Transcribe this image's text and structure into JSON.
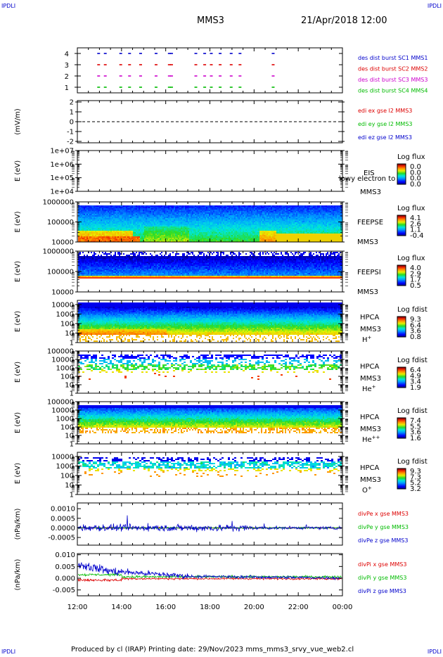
{
  "page": {
    "corner_label": "IPDLI",
    "title": "MMS3",
    "date": "21/Apr/2018 12:00",
    "footer": "Produced by cl (IRAP)    Printing date: 29/Nov/2023    mms_mms3_srvy_vue_web2.cl",
    "time_ticks": [
      "12:00",
      "14:00",
      "16:00",
      "18:00",
      "20:00",
      "22:00",
      "00:00"
    ]
  },
  "colors": {
    "red": "#dd0000",
    "magenta": "#cc00cc",
    "blue": "#0000cc",
    "green": "#00bb00"
  },
  "chart_data": [
    {
      "type": "scatter",
      "panel": "burst",
      "yticks": [
        "1",
        "2",
        "3",
        "4"
      ],
      "ylim": [
        0.5,
        4.5
      ],
      "series": [
        {
          "name": "des dist burst SC1 MMS1",
          "color": "#0000cc",
          "y": 4,
          "x": [
            12.9,
            13.2,
            13.9,
            14.3,
            14.8,
            15.5,
            16.1,
            16.2,
            17.3,
            17.7,
            18.0,
            18.4,
            18.9,
            19.3,
            20.8
          ]
        },
        {
          "name": "des dist burst SC2 MMS2",
          "color": "#dd0000",
          "y": 3,
          "x": [
            12.9,
            13.2,
            13.9,
            14.3,
            14.8,
            15.5,
            16.1,
            16.2,
            17.3,
            17.7,
            18.0,
            18.4,
            18.9,
            19.3,
            20.8
          ]
        },
        {
          "name": "des dist burst SC3 MMS3",
          "color": "#cc00cc",
          "y": 2,
          "x": [
            12.9,
            13.2,
            13.9,
            14.3,
            14.8,
            15.5,
            16.1,
            16.2,
            17.3,
            17.7,
            18.0,
            18.4,
            18.9,
            19.3,
            20.8
          ]
        },
        {
          "name": "des dist burst SC4 MMS4",
          "color": "#00bb00",
          "y": 1,
          "x": [
            12.9,
            13.2,
            13.9,
            14.3,
            14.8,
            15.5,
            16.1,
            16.2,
            17.3,
            17.7,
            18.0,
            18.4,
            18.9,
            19.3,
            20.8
          ]
        }
      ]
    },
    {
      "type": "line",
      "panel": "edi",
      "ylabel": "(mV/m)",
      "yticks": [
        "-2",
        "-1",
        "0",
        "1",
        "2"
      ],
      "ylim": [
        -2,
        2
      ],
      "series": [
        {
          "name": "edi ex gse l2 MMS3",
          "color": "#dd0000"
        },
        {
          "name": "edi ey gse l2 MMS3",
          "color": "#00bb00"
        },
        {
          "name": "edi ez gse l2 MMS3",
          "color": "#0000cc"
        }
      ],
      "reference_line": 0
    },
    {
      "type": "heatmap",
      "panel": "eis",
      "ylabel": "E (eV)",
      "yticks": [
        "1e+04",
        "1e+05",
        "1e+06",
        "1e+07"
      ],
      "instrument": [
        "EIS",
        "MMS3"
      ],
      "overlap_label": "lowy electron to",
      "colorbar": {
        "label": "Log flux",
        "ticks": [
          "0.0",
          "0.0",
          "0.0",
          "0.0"
        ]
      },
      "empty": true
    },
    {
      "type": "heatmap",
      "panel": "feepse",
      "ylabel": "E (eV)",
      "yticks": [
        "10000",
        "100000",
        "1000000"
      ],
      "instrument": [
        "FEEPSE",
        "MMS3"
      ],
      "colorbar": {
        "label": "Log flux",
        "ticks": [
          "4.1",
          "2.6",
          "1.1",
          "-0.4"
        ]
      }
    },
    {
      "type": "heatmap",
      "panel": "feepsi",
      "ylabel": "E (eV)",
      "yticks": [
        "10000",
        "100000",
        "1000000"
      ],
      "instrument": [
        "FEEPSI",
        "MMS3"
      ],
      "colorbar": {
        "label": "Log flux",
        "ticks": [
          "4.0",
          "2.9",
          "1.7",
          "0.5"
        ]
      }
    },
    {
      "type": "heatmap",
      "panel": "hpca_h",
      "ylabel": "E (eV)",
      "yticks": [
        "1",
        "10",
        "100",
        "1000",
        "10000"
      ],
      "instrument": [
        "HPCA",
        "MMS3"
      ],
      "species": {
        "base": "H",
        "charge": "+"
      },
      "colorbar": {
        "label": "Log fdist",
        "ticks": [
          "9.3",
          "6.4",
          "3.6",
          "0.8"
        ]
      }
    },
    {
      "type": "heatmap",
      "panel": "hpca_he1",
      "ylabel": "E (eV)",
      "yticks": [
        "1",
        "10",
        "100",
        "1000",
        "10000",
        "100000"
      ],
      "instrument": [
        "HPCA",
        "MMS3"
      ],
      "species": {
        "base": "He",
        "charge": "+"
      },
      "colorbar": {
        "label": "Log fdist",
        "ticks": [
          "6.4",
          "4.9",
          "3.4",
          "1.9"
        ]
      }
    },
    {
      "type": "heatmap",
      "panel": "hpca_he2",
      "ylabel": "E (eV)",
      "yticks": [
        "1",
        "10",
        "100",
        "1000",
        "10000",
        "100000"
      ],
      "instrument": [
        "HPCA",
        "MMS3"
      ],
      "species": {
        "base": "He",
        "charge": "++"
      },
      "colorbar": {
        "label": "Log fdist",
        "ticks": [
          "7.4",
          "5.5",
          "3.6",
          "1.6"
        ]
      }
    },
    {
      "type": "heatmap",
      "panel": "hpca_o",
      "ylabel": "E (eV)",
      "yticks": [
        "1",
        "10",
        "100",
        "1000",
        "10000"
      ],
      "instrument": [
        "HPCA",
        "MMS3"
      ],
      "species": {
        "base": "O",
        "charge": "+"
      },
      "colorbar": {
        "label": "Log fdist",
        "ticks": [
          "9.3",
          "7.3",
          "5.2",
          "3.2"
        ]
      }
    },
    {
      "type": "line",
      "panel": "divpe",
      "ylabel": "(nPa/km)",
      "yticks": [
        "-0.0005",
        "0.0000",
        "0.0005",
        "0.0010"
      ],
      "ylim": [
        -0.0009,
        0.0013
      ],
      "series": [
        {
          "name": "divPe x gse MMS3",
          "color": "#dd0000"
        },
        {
          "name": "divPe y gse MMS3",
          "color": "#00bb00"
        },
        {
          "name": "divPe z gse MMS3",
          "color": "#0000cc"
        }
      ]
    },
    {
      "type": "line",
      "panel": "divpi",
      "ylabel": "(nPa/km)",
      "yticks": [
        "-0.005",
        "0.000",
        "0.005",
        "0.010"
      ],
      "ylim": [
        -0.0075,
        0.0105
      ],
      "series": [
        {
          "name": "divPi x gse MMS3",
          "color": "#dd0000"
        },
        {
          "name": "divPi y gse MMS3",
          "color": "#00bb00"
        },
        {
          "name": "divPi z gse MMS3",
          "color": "#0000cc"
        }
      ]
    }
  ]
}
